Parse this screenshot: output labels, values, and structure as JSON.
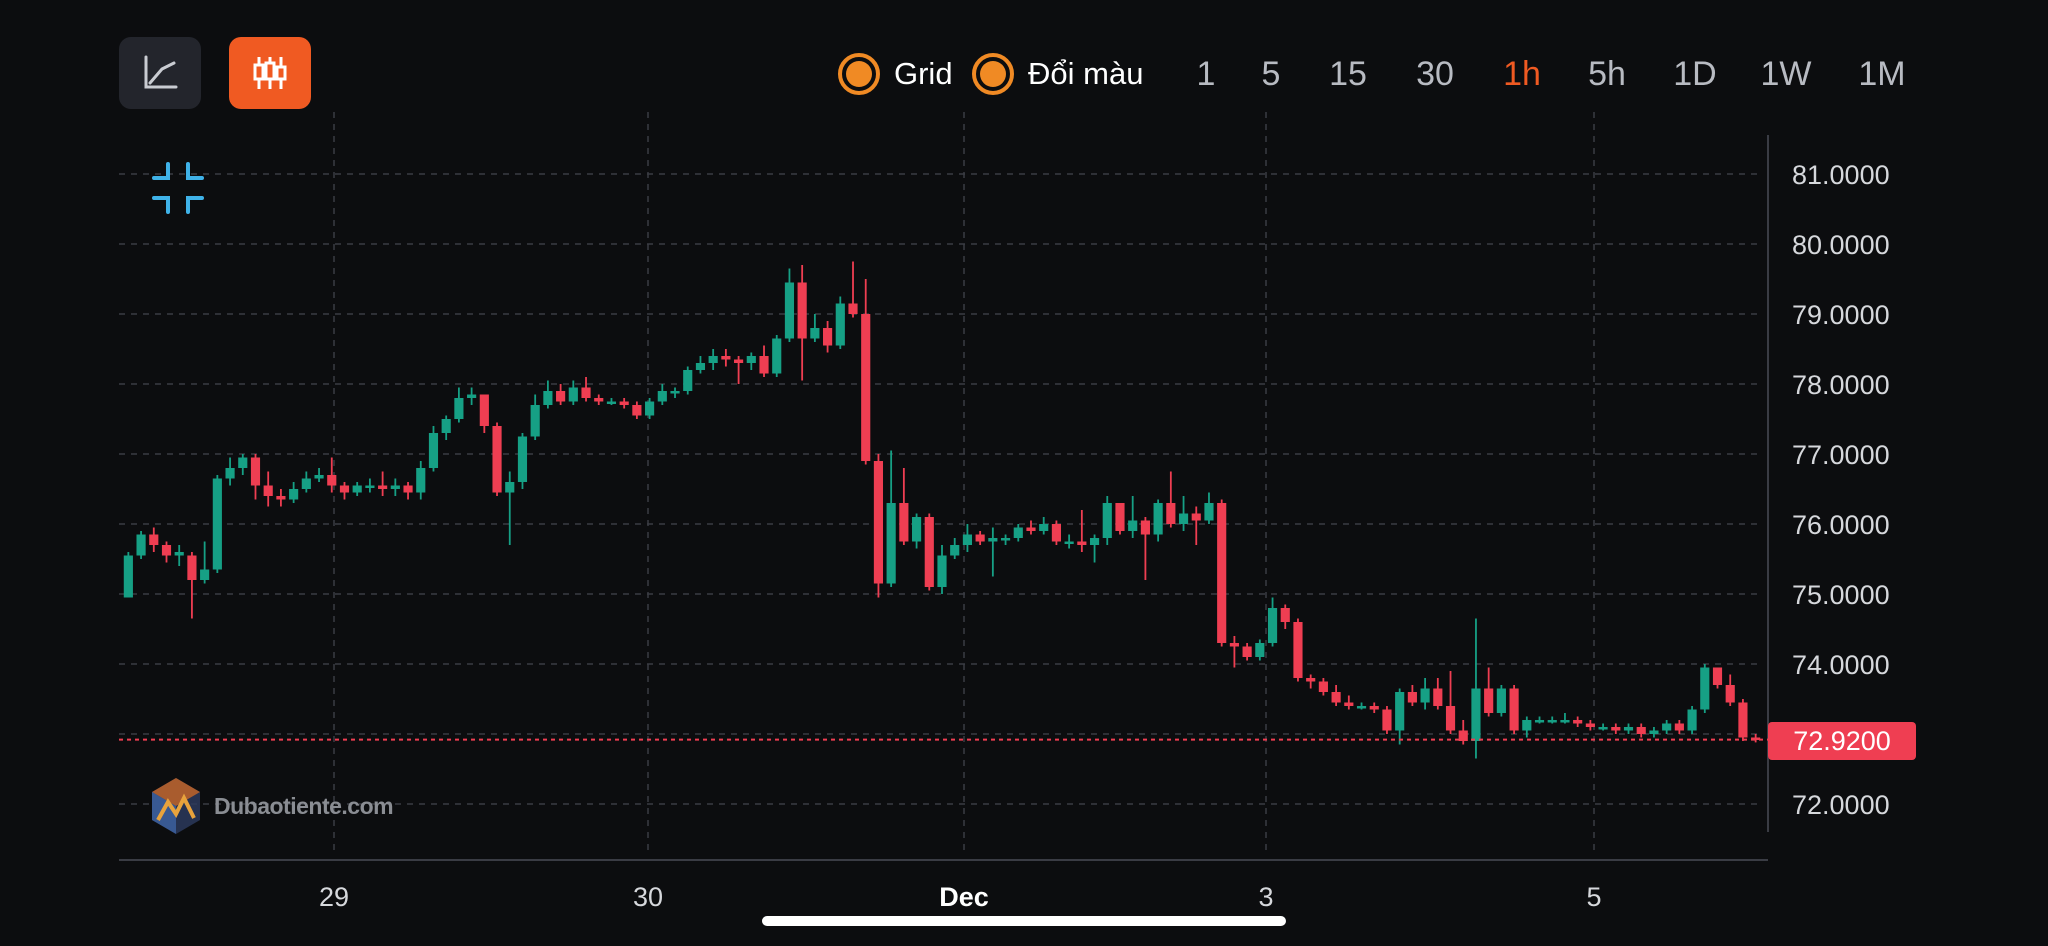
{
  "toolbar": {
    "line_mode_icon": "line-chart-icon",
    "candle_mode_icon": "candlestick-icon",
    "grid_label": "Grid",
    "color_label": "Đổi màu",
    "timeframes": [
      "1",
      "5",
      "15",
      "30",
      "1h",
      "5h",
      "1D",
      "1W",
      "1M"
    ],
    "active_timeframe": "1h"
  },
  "collapse_icon": "collapse-icon",
  "watermark": {
    "text": "Dubaotiente.com",
    "icon": "logo-icon"
  },
  "colors": {
    "up": "#16a085",
    "down": "#ef3e52",
    "accent": "#f05a22",
    "toggle": "#f08a24",
    "background": "#0c0d0f"
  },
  "last_price_label": "72.9200",
  "chart_data": {
    "type": "candlestick",
    "y_axis_labels": [
      "81.0000",
      "80.0000",
      "79.0000",
      "78.0000",
      "77.0000",
      "76.0000",
      "75.0000",
      "74.0000",
      "72.0000"
    ],
    "ylim": [
      71.7,
      82.0
    ],
    "x_axis_labels": [
      {
        "label": "29",
        "bold": false
      },
      {
        "label": "30",
        "bold": false
      },
      {
        "label": "Dec",
        "bold": true
      },
      {
        "label": "3",
        "bold": false
      },
      {
        "label": "5",
        "bold": false
      }
    ],
    "last_price": 72.92,
    "grid": true,
    "candles": [
      [
        74.95,
        75.55,
        75.6,
        74.95
      ],
      [
        75.55,
        75.85,
        75.9,
        75.5
      ],
      [
        75.85,
        75.7,
        75.95,
        75.6
      ],
      [
        75.7,
        75.55,
        75.75,
        75.45
      ],
      [
        75.55,
        75.6,
        75.7,
        75.4
      ],
      [
        75.55,
        75.2,
        75.6,
        74.65
      ],
      [
        75.2,
        75.35,
        75.75,
        75.15
      ],
      [
        75.35,
        76.65,
        76.7,
        75.3
      ],
      [
        76.65,
        76.8,
        76.95,
        76.55
      ],
      [
        76.8,
        76.95,
        77.0,
        76.7
      ],
      [
        76.95,
        76.55,
        77.0,
        76.35
      ],
      [
        76.55,
        76.4,
        76.75,
        76.25
      ],
      [
        76.4,
        76.35,
        76.5,
        76.25
      ],
      [
        76.35,
        76.5,
        76.6,
        76.3
      ],
      [
        76.5,
        76.65,
        76.75,
        76.45
      ],
      [
        76.65,
        76.7,
        76.8,
        76.6
      ],
      [
        76.7,
        76.55,
        76.95,
        76.45
      ],
      [
        76.55,
        76.45,
        76.6,
        76.35
      ],
      [
        76.45,
        76.55,
        76.6,
        76.4
      ],
      [
        76.55,
        76.55,
        76.65,
        76.45
      ],
      [
        76.55,
        76.5,
        76.75,
        76.4
      ],
      [
        76.5,
        76.55,
        76.65,
        76.4
      ],
      [
        76.55,
        76.45,
        76.6,
        76.35
      ],
      [
        76.45,
        76.8,
        76.9,
        76.35
      ],
      [
        76.8,
        77.3,
        77.4,
        76.75
      ],
      [
        77.3,
        77.5,
        77.55,
        77.2
      ],
      [
        77.5,
        77.8,
        77.95,
        77.45
      ],
      [
        77.8,
        77.85,
        77.95,
        77.7
      ],
      [
        77.85,
        77.4,
        77.85,
        77.3
      ],
      [
        77.4,
        76.45,
        77.45,
        76.4
      ],
      [
        76.45,
        76.6,
        76.75,
        75.7
      ],
      [
        76.6,
        77.25,
        77.3,
        76.5
      ],
      [
        77.25,
        77.7,
        77.85,
        77.2
      ],
      [
        77.7,
        77.9,
        78.05,
        77.65
      ],
      [
        77.9,
        77.75,
        78.0,
        77.7
      ],
      [
        77.75,
        77.95,
        78.05,
        77.7
      ],
      [
        77.95,
        77.8,
        78.1,
        77.75
      ],
      [
        77.8,
        77.75,
        77.85,
        77.7
      ],
      [
        77.75,
        77.75,
        77.8,
        77.7
      ],
      [
        77.75,
        77.7,
        77.8,
        77.65
      ],
      [
        77.7,
        77.55,
        77.75,
        77.5
      ],
      [
        77.55,
        77.75,
        77.8,
        77.5
      ],
      [
        77.75,
        77.9,
        78.0,
        77.7
      ],
      [
        77.9,
        77.9,
        77.95,
        77.8
      ],
      [
        77.9,
        78.2,
        78.25,
        77.85
      ],
      [
        78.2,
        78.3,
        78.4,
        78.15
      ],
      [
        78.3,
        78.4,
        78.5,
        78.2
      ],
      [
        78.4,
        78.35,
        78.5,
        78.25
      ],
      [
        78.35,
        78.3,
        78.4,
        78.0
      ],
      [
        78.3,
        78.4,
        78.45,
        78.2
      ],
      [
        78.4,
        78.15,
        78.55,
        78.1
      ],
      [
        78.15,
        78.65,
        78.7,
        78.1
      ],
      [
        78.65,
        79.45,
        79.65,
        78.6
      ],
      [
        79.45,
        78.65,
        79.7,
        78.05
      ],
      [
        78.65,
        78.8,
        79.0,
        78.6
      ],
      [
        78.8,
        78.55,
        78.9,
        78.45
      ],
      [
        78.55,
        79.15,
        79.25,
        78.5
      ],
      [
        79.15,
        79.0,
        79.75,
        78.95
      ],
      [
        79.0,
        76.9,
        79.5,
        76.85
      ],
      [
        76.9,
        75.15,
        77.0,
        74.95
      ],
      [
        75.15,
        76.3,
        77.05,
        75.1
      ],
      [
        76.3,
        75.75,
        76.8,
        75.7
      ],
      [
        75.75,
        76.1,
        76.15,
        75.65
      ],
      [
        76.1,
        75.1,
        76.15,
        75.05
      ],
      [
        75.1,
        75.55,
        75.7,
        75.0
      ],
      [
        75.55,
        75.7,
        75.8,
        75.5
      ],
      [
        75.7,
        75.85,
        76.0,
        75.6
      ],
      [
        75.85,
        75.75,
        75.9,
        75.7
      ],
      [
        75.75,
        75.8,
        75.95,
        75.25
      ],
      [
        75.8,
        75.8,
        75.85,
        75.7
      ],
      [
        75.8,
        75.95,
        76.0,
        75.75
      ],
      [
        75.95,
        75.9,
        76.05,
        75.85
      ],
      [
        75.9,
        76.0,
        76.1,
        75.85
      ],
      [
        76.0,
        75.75,
        76.05,
        75.7
      ],
      [
        75.75,
        75.75,
        75.85,
        75.65
      ],
      [
        75.75,
        75.7,
        76.2,
        75.6
      ],
      [
        75.7,
        75.8,
        75.85,
        75.45
      ],
      [
        75.8,
        76.3,
        76.4,
        75.7
      ],
      [
        76.3,
        75.9,
        76.3,
        75.85
      ],
      [
        75.9,
        76.05,
        76.4,
        75.8
      ],
      [
        76.05,
        75.85,
        76.1,
        75.2
      ],
      [
        75.85,
        76.3,
        76.35,
        75.75
      ],
      [
        76.3,
        76.0,
        76.75,
        75.95
      ],
      [
        76.0,
        76.15,
        76.4,
        75.9
      ],
      [
        76.15,
        76.05,
        76.25,
        75.7
      ],
      [
        76.05,
        76.3,
        76.45,
        76.0
      ],
      [
        76.3,
        74.3,
        76.35,
        74.25
      ],
      [
        74.3,
        74.25,
        74.4,
        73.95
      ],
      [
        74.25,
        74.1,
        74.3,
        74.05
      ],
      [
        74.1,
        74.3,
        74.35,
        74.05
      ],
      [
        74.3,
        74.8,
        74.95,
        74.25
      ],
      [
        74.8,
        74.6,
        74.85,
        74.5
      ],
      [
        74.6,
        73.8,
        74.65,
        73.75
      ],
      [
        73.8,
        73.75,
        73.85,
        73.65
      ],
      [
        73.75,
        73.6,
        73.8,
        73.55
      ],
      [
        73.6,
        73.45,
        73.7,
        73.4
      ],
      [
        73.45,
        73.4,
        73.55,
        73.35
      ],
      [
        73.4,
        73.4,
        73.45,
        73.35
      ],
      [
        73.4,
        73.35,
        73.45,
        73.3
      ],
      [
        73.35,
        73.05,
        73.4,
        73.0
      ],
      [
        73.05,
        73.6,
        73.65,
        72.85
      ],
      [
        73.6,
        73.45,
        73.7,
        73.4
      ],
      [
        73.45,
        73.65,
        73.8,
        73.35
      ],
      [
        73.65,
        73.4,
        73.8,
        73.35
      ],
      [
        73.4,
        73.05,
        73.9,
        73.0
      ],
      [
        73.05,
        72.9,
        73.2,
        72.85
      ],
      [
        72.9,
        73.65,
        74.65,
        72.65
      ],
      [
        73.65,
        73.3,
        73.95,
        73.25
      ],
      [
        73.3,
        73.65,
        73.7,
        73.25
      ],
      [
        73.65,
        73.05,
        73.7,
        73.0
      ],
      [
        73.05,
        73.2,
        73.25,
        72.95
      ],
      [
        73.2,
        73.2,
        73.25,
        73.15
      ],
      [
        73.2,
        73.2,
        73.25,
        73.15
      ],
      [
        73.2,
        73.2,
        73.3,
        73.15
      ],
      [
        73.2,
        73.15,
        73.25,
        73.1
      ],
      [
        73.15,
        73.1,
        73.2,
        73.05
      ],
      [
        73.1,
        73.1,
        73.15,
        73.05
      ],
      [
        73.1,
        73.05,
        73.15,
        73.0
      ],
      [
        73.05,
        73.1,
        73.15,
        73.0
      ],
      [
        73.1,
        73.0,
        73.15,
        72.95
      ],
      [
        73.0,
        73.05,
        73.1,
        72.95
      ],
      [
        73.05,
        73.15,
        73.2,
        73.0
      ],
      [
        73.15,
        73.05,
        73.2,
        73.0
      ],
      [
        73.05,
        73.35,
        73.4,
        73.0
      ],
      [
        73.35,
        73.95,
        74.0,
        73.3
      ],
      [
        73.95,
        73.7,
        73.95,
        73.65
      ],
      [
        73.7,
        73.45,
        73.85,
        73.4
      ],
      [
        73.45,
        72.95,
        73.5,
        72.9
      ],
      [
        72.95,
        72.92,
        73.0,
        72.88
      ]
    ]
  }
}
